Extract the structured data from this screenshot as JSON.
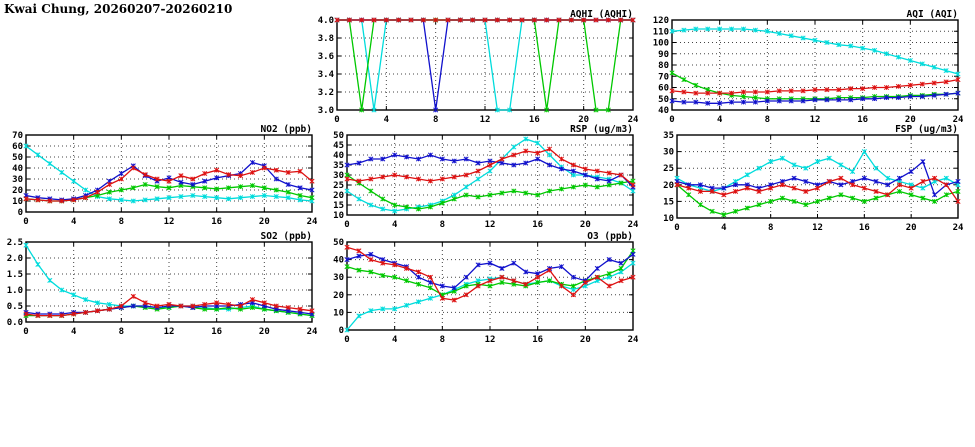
{
  "page_title": "Kwai Chung, 20260207-20260210",
  "colors": {
    "red": "#dd1111",
    "blue": "#1111cc",
    "green": "#00c800",
    "cyan": "#00dcdc"
  },
  "x_hours": [
    0,
    1,
    2,
    3,
    4,
    5,
    6,
    7,
    8,
    9,
    10,
    11,
    12,
    13,
    14,
    15,
    16,
    17,
    18,
    19,
    20,
    21,
    22,
    23,
    24
  ],
  "chart_data": [
    {
      "id": "aqhi",
      "type": "line",
      "title": "AQHI (AQHI)",
      "xlabel": "",
      "ylabel": "",
      "grid": true,
      "legend": "none",
      "xlim": [
        0,
        24
      ],
      "xticks": [
        0,
        4,
        8,
        12,
        16,
        20,
        24
      ],
      "ylim": [
        3.0,
        4.0
      ],
      "yticks": [
        3.0,
        3.2,
        3.4,
        3.6,
        3.8,
        4.0
      ],
      "ytick_labels": [
        "3.0",
        "3.2",
        "3.4",
        "3.6",
        "3.8",
        "4.0"
      ],
      "series": [
        {
          "name": "cyan",
          "color": "#00dcdc",
          "values": [
            4,
            4,
            4,
            3,
            4,
            4,
            4,
            4,
            4,
            4,
            4,
            4,
            4,
            3,
            3,
            4,
            4,
            4,
            4,
            4,
            4,
            4,
            4,
            4,
            4
          ]
        },
        {
          "name": "green",
          "color": "#00c800",
          "values": [
            4,
            4,
            3,
            4,
            4,
            4,
            4,
            4,
            4,
            4,
            4,
            4,
            4,
            4,
            4,
            4,
            4,
            3,
            4,
            4,
            4,
            3,
            3,
            4,
            4
          ]
        },
        {
          "name": "blue",
          "color": "#1111cc",
          "values": [
            4,
            4,
            4,
            4,
            4,
            4,
            4,
            4,
            3,
            4,
            4,
            4,
            4,
            4,
            4,
            4,
            4,
            4,
            4,
            4,
            4,
            4,
            4,
            4,
            4
          ]
        },
        {
          "name": "red",
          "color": "#dd1111",
          "values": [
            4,
            4,
            4,
            4,
            4,
            4,
            4,
            4,
            4,
            4,
            4,
            4,
            4,
            4,
            4,
            4,
            4,
            4,
            4,
            4,
            4,
            4,
            4,
            4,
            4
          ]
        }
      ]
    },
    {
      "id": "aqi",
      "type": "line",
      "title": "AQI (AQI)",
      "xlabel": "",
      "ylabel": "",
      "grid": true,
      "legend": "none",
      "xlim": [
        0,
        24
      ],
      "xticks": [
        0,
        4,
        8,
        12,
        16,
        20,
        24
      ],
      "ylim": [
        40,
        120
      ],
      "yticks": [
        40,
        50,
        60,
        70,
        80,
        90,
        100,
        110,
        120
      ],
      "ytick_labels": [
        "40",
        "50",
        "60",
        "70",
        "80",
        "90",
        "100",
        "110",
        "120"
      ],
      "series": [
        {
          "name": "cyan",
          "color": "#00dcdc",
          "values": [
            110,
            111,
            112,
            112,
            112,
            112,
            112,
            111,
            110,
            108,
            106,
            104,
            102,
            100,
            98,
            97,
            95,
            93,
            90,
            87,
            84,
            81,
            78,
            75,
            72
          ]
        },
        {
          "name": "green",
          "color": "#00c800",
          "values": [
            73,
            67,
            62,
            58,
            55,
            53,
            52,
            51,
            50,
            50,
            50,
            50,
            50,
            50,
            51,
            51,
            51,
            52,
            52,
            52,
            53,
            53,
            54,
            54,
            55
          ]
        },
        {
          "name": "blue",
          "color": "#1111cc",
          "values": [
            48,
            47,
            47,
            46,
            46,
            47,
            47,
            47,
            48,
            48,
            48,
            48,
            49,
            49,
            49,
            49,
            50,
            50,
            51,
            51,
            52,
            52,
            53,
            54,
            55
          ]
        },
        {
          "name": "red",
          "color": "#dd1111",
          "values": [
            57,
            56,
            55,
            55,
            55,
            55,
            56,
            56,
            56,
            57,
            57,
            57,
            58,
            58,
            58,
            59,
            59,
            60,
            60,
            61,
            62,
            63,
            64,
            65,
            67
          ]
        }
      ]
    },
    {
      "id": "no2",
      "type": "line",
      "title": "NO2 (ppb)",
      "xlabel": "",
      "ylabel": "",
      "grid": true,
      "legend": "none",
      "xlim": [
        0,
        24
      ],
      "xticks": [
        0,
        4,
        8,
        12,
        16,
        20,
        24
      ],
      "ylim": [
        0,
        70
      ],
      "yticks": [
        0,
        10,
        20,
        30,
        40,
        50,
        60,
        70
      ],
      "ytick_labels": [
        "0",
        "10",
        "20",
        "30",
        "40",
        "50",
        "60",
        "70"
      ],
      "series": [
        {
          "name": "cyan",
          "color": "#00dcdc",
          "values": [
            60,
            52,
            44,
            36,
            28,
            20,
            14,
            12,
            11,
            10,
            11,
            12,
            13,
            14,
            15,
            14,
            13,
            12,
            13,
            14,
            15,
            14,
            13,
            11,
            10
          ]
        },
        {
          "name": "green",
          "color": "#00c800",
          "values": [
            12,
            11,
            10,
            10,
            11,
            13,
            15,
            18,
            20,
            22,
            25,
            23,
            22,
            24,
            23,
            22,
            21,
            22,
            23,
            24,
            22,
            20,
            18,
            15,
            13
          ]
        },
        {
          "name": "blue",
          "color": "#1111cc",
          "values": [
            15,
            13,
            12,
            11,
            12,
            15,
            20,
            28,
            35,
            42,
            33,
            28,
            31,
            27,
            25,
            28,
            31,
            33,
            35,
            45,
            42,
            30,
            25,
            22,
            20
          ]
        },
        {
          "name": "red",
          "color": "#dd1111",
          "values": [
            12,
            11,
            10,
            10,
            11,
            13,
            18,
            25,
            30,
            40,
            34,
            30,
            28,
            33,
            30,
            35,
            38,
            34,
            33,
            36,
            40,
            38,
            36,
            37,
            28
          ]
        }
      ]
    },
    {
      "id": "rsp",
      "type": "line",
      "title": "RSP (ug/m3)",
      "xlabel": "",
      "ylabel": "",
      "grid": true,
      "legend": "none",
      "xlim": [
        0,
        24
      ],
      "xticks": [
        0,
        4,
        8,
        12,
        16,
        20,
        24
      ],
      "ylim": [
        10,
        50
      ],
      "yticks": [
        10,
        15,
        20,
        25,
        30,
        35,
        40,
        45,
        50
      ],
      "ytick_labels": [
        "10",
        "15",
        "20",
        "25",
        "30",
        "35",
        "40",
        "45",
        "50"
      ],
      "series": [
        {
          "name": "cyan",
          "color": "#00dcdc",
          "values": [
            22,
            18,
            15,
            13,
            12,
            13,
            14,
            15,
            17,
            20,
            24,
            28,
            32,
            38,
            44,
            48,
            46,
            40,
            34,
            30,
            30,
            29,
            28,
            26,
            22
          ]
        },
        {
          "name": "green",
          "color": "#00c800",
          "values": [
            30,
            26,
            22,
            18,
            15,
            14,
            13,
            14,
            16,
            18,
            20,
            19,
            20,
            21,
            22,
            21,
            20,
            22,
            23,
            24,
            25,
            24,
            25,
            26,
            27
          ]
        },
        {
          "name": "blue",
          "color": "#1111cc",
          "values": [
            35,
            36,
            38,
            38,
            40,
            39,
            38,
            40,
            38,
            37,
            38,
            36,
            37,
            36,
            35,
            36,
            38,
            35,
            33,
            32,
            30,
            28,
            27,
            30,
            24
          ]
        },
        {
          "name": "red",
          "color": "#dd1111",
          "values": [
            28,
            27,
            28,
            29,
            30,
            29,
            28,
            27,
            28,
            29,
            30,
            32,
            35,
            38,
            40,
            42,
            41,
            43,
            38,
            35,
            33,
            32,
            31,
            30,
            25
          ]
        }
      ]
    },
    {
      "id": "fsp",
      "type": "line",
      "title": "FSP (ug/m3)",
      "xlabel": "",
      "ylabel": "",
      "grid": true,
      "legend": "none",
      "xlim": [
        0,
        24
      ],
      "xticks": [
        0,
        4,
        8,
        12,
        16,
        20,
        24
      ],
      "ylim": [
        10,
        35
      ],
      "yticks": [
        10,
        15,
        20,
        25,
        30,
        35
      ],
      "ytick_labels": [
        "10",
        "15",
        "20",
        "25",
        "30",
        "35"
      ],
      "series": [
        {
          "name": "cyan",
          "color": "#00dcdc",
          "values": [
            22,
            20,
            19,
            18,
            19,
            21,
            23,
            25,
            27,
            28,
            26,
            25,
            27,
            28,
            26,
            24,
            30,
            25,
            22,
            21,
            20,
            19,
            21,
            22,
            20
          ]
        },
        {
          "name": "green",
          "color": "#00c800",
          "values": [
            20,
            17,
            14,
            12,
            11,
            12,
            13,
            14,
            15,
            16,
            15,
            14,
            15,
            16,
            17,
            16,
            15,
            16,
            17,
            18,
            17,
            16,
            15,
            17,
            18
          ]
        },
        {
          "name": "blue",
          "color": "#1111cc",
          "values": [
            21,
            20,
            20,
            19,
            19,
            20,
            20,
            19,
            20,
            21,
            22,
            21,
            20,
            21,
            20,
            21,
            22,
            21,
            20,
            22,
            24,
            27,
            17,
            20,
            21
          ]
        },
        {
          "name": "red",
          "color": "#dd1111",
          "values": [
            20,
            19,
            18,
            18,
            17,
            18,
            19,
            18,
            19,
            20,
            19,
            18,
            19,
            21,
            22,
            20,
            19,
            18,
            17,
            20,
            19,
            21,
            22,
            20,
            15
          ]
        }
      ]
    },
    {
      "id": "so2",
      "type": "line",
      "title": "SO2 (ppb)",
      "xlabel": "",
      "ylabel": "",
      "grid": true,
      "legend": "none",
      "xlim": [
        0,
        24
      ],
      "xticks": [
        0,
        4,
        8,
        12,
        16,
        20,
        24
      ],
      "ylim": [
        0,
        2.5
      ],
      "yticks": [
        0,
        0.5,
        1.0,
        1.5,
        2.0,
        2.5
      ],
      "ytick_labels": [
        "0.0",
        "0.5",
        "1.0",
        "1.5",
        "2.0",
        "2.5"
      ],
      "series": [
        {
          "name": "cyan",
          "color": "#00dcdc",
          "values": [
            2.4,
            1.8,
            1.3,
            1.0,
            0.85,
            0.7,
            0.6,
            0.55,
            0.5,
            0.5,
            0.5,
            0.45,
            0.45,
            0.5,
            0.5,
            0.45,
            0.4,
            0.4,
            0.45,
            0.5,
            0.4,
            0.35,
            0.3,
            0.25,
            0.2
          ]
        },
        {
          "name": "green",
          "color": "#00c800",
          "values": [
            0.2,
            0.2,
            0.2,
            0.2,
            0.25,
            0.3,
            0.35,
            0.4,
            0.45,
            0.5,
            0.45,
            0.4,
            0.45,
            0.5,
            0.45,
            0.4,
            0.4,
            0.45,
            0.4,
            0.45,
            0.4,
            0.35,
            0.3,
            0.25,
            0.2
          ]
        },
        {
          "name": "blue",
          "color": "#1111cc",
          "values": [
            0.3,
            0.25,
            0.25,
            0.25,
            0.3,
            0.3,
            0.35,
            0.4,
            0.45,
            0.5,
            0.5,
            0.45,
            0.5,
            0.5,
            0.45,
            0.5,
            0.5,
            0.5,
            0.55,
            0.6,
            0.5,
            0.4,
            0.35,
            0.3,
            0.25
          ]
        },
        {
          "name": "red",
          "color": "#dd1111",
          "values": [
            0.25,
            0.2,
            0.2,
            0.2,
            0.25,
            0.3,
            0.35,
            0.4,
            0.5,
            0.8,
            0.6,
            0.5,
            0.55,
            0.5,
            0.5,
            0.55,
            0.6,
            0.55,
            0.5,
            0.7,
            0.6,
            0.5,
            0.45,
            0.4,
            0.35
          ]
        }
      ]
    },
    {
      "id": "o3",
      "type": "line",
      "title": "O3 (ppb)",
      "xlabel": "",
      "ylabel": "",
      "grid": true,
      "legend": "none",
      "xlim": [
        0,
        24
      ],
      "xticks": [
        0,
        4,
        8,
        12,
        16,
        20,
        24
      ],
      "ylim": [
        0,
        50
      ],
      "yticks": [
        0,
        10,
        20,
        30,
        40,
        50
      ],
      "ytick_labels": [
        "0",
        "10",
        "20",
        "30",
        "40",
        "50"
      ],
      "series": [
        {
          "name": "cyan",
          "color": "#00dcdc",
          "values": [
            0,
            8,
            11,
            12,
            12,
            14,
            16,
            18,
            20,
            23,
            26,
            28,
            29,
            30,
            28,
            26,
            27,
            28,
            25,
            23,
            25,
            28,
            30,
            33,
            38
          ]
        },
        {
          "name": "green",
          "color": "#00c800",
          "values": [
            36,
            34,
            33,
            31,
            30,
            28,
            26,
            24,
            20,
            22,
            25,
            26,
            25,
            27,
            26,
            25,
            27,
            28,
            26,
            25,
            28,
            30,
            32,
            35,
            45
          ]
        },
        {
          "name": "blue",
          "color": "#1111cc",
          "values": [
            40,
            42,
            43,
            40,
            38,
            36,
            30,
            27,
            25,
            24,
            30,
            37,
            38,
            35,
            38,
            33,
            32,
            35,
            36,
            30,
            28,
            35,
            40,
            38,
            43
          ]
        },
        {
          "name": "red",
          "color": "#dd1111",
          "values": [
            47,
            45,
            40,
            38,
            37,
            35,
            33,
            30,
            18,
            17,
            20,
            25,
            28,
            30,
            28,
            26,
            30,
            34,
            25,
            20,
            27,
            30,
            25,
            28,
            30
          ]
        }
      ]
    }
  ]
}
